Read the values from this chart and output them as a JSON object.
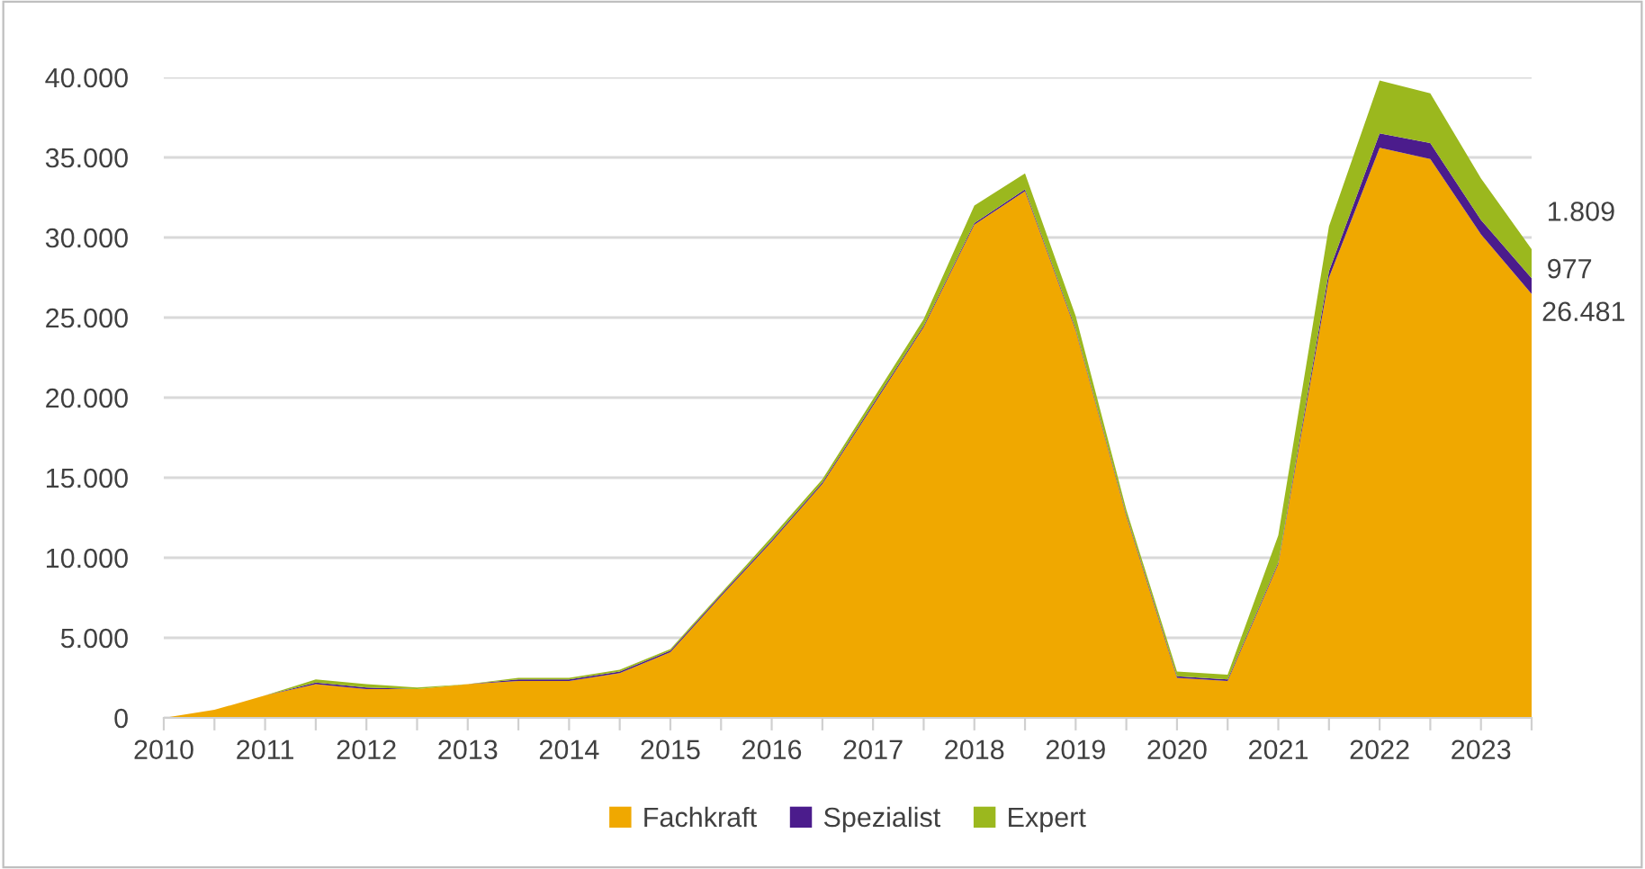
{
  "chart_data": {
    "type": "area",
    "stacked": true,
    "x": [
      2010,
      2010.5,
      2011,
      2011.5,
      2012,
      2012.5,
      2013,
      2013.5,
      2014,
      2014.5,
      2015,
      2015.5,
      2016,
      2016.5,
      2017,
      2017.5,
      2018,
      2018.5,
      2019,
      2019.5,
      2020,
      2020.5,
      2021,
      2021.5,
      2022,
      2022.5,
      2023,
      2023.5
    ],
    "series": [
      {
        "name": "Fachkraft",
        "color": "#f0a800",
        "values": [
          0,
          500,
          1400,
          2100,
          1800,
          1800,
          2100,
          2300,
          2300,
          2800,
          4100,
          7600,
          11000,
          14600,
          19500,
          24400,
          30800,
          32900,
          24200,
          12600,
          2500,
          2300,
          9600,
          27500,
          35600,
          34900,
          30200,
          26481
        ],
        "value_labels": [
          null,
          null,
          null,
          null,
          null,
          null,
          null,
          null,
          null,
          null,
          null,
          null,
          null,
          null,
          null,
          null,
          null,
          null,
          null,
          null,
          null,
          null,
          null,
          null,
          null,
          null,
          null,
          "26.481"
        ]
      },
      {
        "name": "Spezialist",
        "color": "#4b1c8c",
        "values": [
          0,
          0,
          0,
          100,
          100,
          0,
          0,
          100,
          100,
          100,
          100,
          100,
          100,
          100,
          100,
          100,
          100,
          100,
          100,
          100,
          100,
          100,
          100,
          400,
          900,
          1000,
          900,
          977
        ],
        "value_labels": [
          null,
          null,
          null,
          null,
          null,
          null,
          null,
          null,
          null,
          null,
          null,
          null,
          null,
          null,
          null,
          null,
          null,
          null,
          null,
          null,
          null,
          null,
          null,
          null,
          null,
          null,
          null,
          "977"
        ]
      },
      {
        "name": "Expert",
        "color": "#9bb81e",
        "values": [
          0,
          0,
          0,
          200,
          200,
          100,
          0,
          100,
          100,
          100,
          100,
          100,
          200,
          200,
          300,
          400,
          1100,
          1000,
          800,
          300,
          300,
          300,
          1700,
          2800,
          3300,
          3100,
          2600,
          1809
        ],
        "value_labels": [
          null,
          null,
          null,
          null,
          null,
          null,
          null,
          null,
          null,
          null,
          null,
          null,
          null,
          null,
          null,
          null,
          null,
          null,
          null,
          null,
          null,
          null,
          null,
          null,
          null,
          null,
          null,
          "1.809"
        ]
      }
    ],
    "xlim": [
      2010,
      2023.5
    ],
    "xticks": [
      2010,
      {
        "value": 2010.5,
        "label": null
      },
      2011,
      {
        "value": 2011.5,
        "label": null
      },
      2012,
      {
        "value": 2012.5,
        "label": null
      },
      2013,
      {
        "value": 2013.5,
        "label": null
      },
      2014,
      {
        "value": 2014.5,
        "label": null
      },
      2015,
      {
        "value": 2015.5,
        "label": null
      },
      2016,
      {
        "value": 2016.5,
        "label": null
      },
      2017,
      {
        "value": 2017.5,
        "label": null
      },
      2018,
      {
        "value": 2018.5,
        "label": null
      },
      2019,
      {
        "value": 2019.5,
        "label": null
      },
      2020,
      {
        "value": 2020.5,
        "label": null
      },
      2021,
      {
        "value": 2021.5,
        "label": null
      },
      2022,
      {
        "value": 2022.5,
        "label": null
      },
      2023,
      {
        "value": 2023.5,
        "label": null
      }
    ],
    "ylim": [
      0,
      40000
    ],
    "yticks": [
      0,
      {
        "value": 5000,
        "label": "5.000"
      },
      {
        "value": 10000,
        "label": "10.000"
      },
      {
        "value": 15000,
        "label": "15.000"
      },
      {
        "value": 20000,
        "label": "20.000"
      },
      {
        "value": 25000,
        "label": "25.000"
      },
      {
        "value": 30000,
        "label": "30.000"
      },
      {
        "value": 35000,
        "label": "35.000"
      },
      {
        "value": 40000,
        "label": "40.000"
      }
    ],
    "grid": "y",
    "legend": "bottom"
  }
}
